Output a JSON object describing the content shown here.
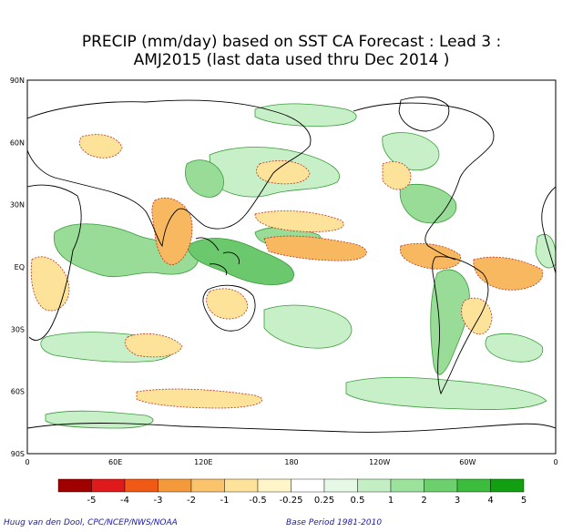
{
  "title_line1": "PRECIP (mm/day) based on SST CA Forecast : Lead 3 :",
  "title_line2": "AMJ2015 (last data used thru Dec 2014 )",
  "lat_labels": [
    "90N",
    "60N",
    "30N",
    "EQ",
    "30S",
    "60S",
    "90S"
  ],
  "lon_labels": [
    "0",
    "60E",
    "120E",
    "180",
    "120W",
    "60W",
    "0"
  ],
  "legend": {
    "labels": [
      "-5",
      "-4",
      "-3",
      "-2",
      "-1",
      "-0.5",
      "-0.25",
      "0.25",
      "0.5",
      "1",
      "2",
      "3",
      "4",
      "5"
    ],
    "colors": [
      "#a00000",
      "#e01a1a",
      "#f05a14",
      "#f59a3c",
      "#fbc46c",
      "#fde29a",
      "#fff5c8",
      "#ffffff",
      "#e6f8e6",
      "#c4efc4",
      "#9ce29c",
      "#6cd06c",
      "#3cbc3c",
      "#12a012"
    ]
  },
  "colors": {
    "land_outline": "#000000",
    "dry_light": "#fde29a",
    "dry_mid": "#f8b860",
    "dry_contour": "#c0301a",
    "wet_light": "#c8f0c8",
    "wet_mid": "#98dc98",
    "wet_dark": "#6cc86c",
    "wet_contour": "#3a9a3a"
  },
  "footer": {
    "credit": "Huug van den Dool, CPC/NCEP/NWS/NOAA",
    "base_period": "Base Period 1981-2010"
  }
}
